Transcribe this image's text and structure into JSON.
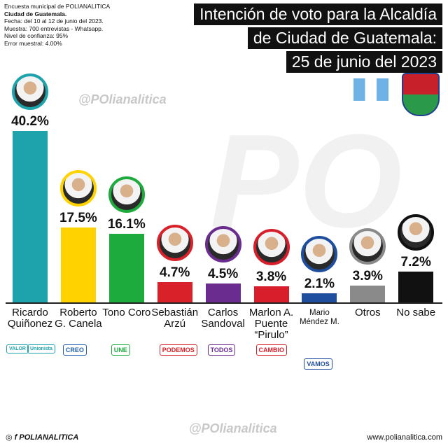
{
  "chart_data": {
    "type": "bar",
    "title_lines": [
      "Intención de voto para la Alcaldía",
      "de Ciudad de Guatemala:",
      "25 de junio del 2023"
    ],
    "info_lines": [
      "Encuesta municipal de POLIANALITICA",
      "Ciudad de Guatemala.",
      "Fecha: del 10 al 12 de junio del 2023.",
      "Muestra: 700 entrevistas - Whatsapp.",
      "Nivel de confianza: 95%",
      "Error muestral: 4.00%"
    ],
    "categories": [
      "Ricardo Quiñonez",
      "Roberto G. Canela",
      "Tono Coro",
      "Sebastián Arzú",
      "Carlos Sandoval",
      "Marlon A. Puente “Pirulo”",
      "Mario Méndez M.",
      "Otros",
      "No sabe"
    ],
    "values": [
      40.2,
      17.5,
      16.1,
      4.7,
      4.5,
      3.8,
      2.1,
      3.9,
      7.2
    ],
    "value_labels": [
      "40.2%",
      "17.5%",
      "16.1%",
      "4.7%",
      "4.5%",
      "3.8%",
      "2.1%",
      "3.9%",
      "7.2%"
    ],
    "colors": [
      "#1ea3ad",
      "#ffd200",
      "#1cab3c",
      "#d82128",
      "#6b2c8f",
      "#d81e2a",
      "#1f4e9f",
      "#8a8a8a",
      "#111111"
    ],
    "party_logos": [
      [
        "VALOR",
        "Unionista"
      ],
      [
        "CREO"
      ],
      [
        "UNE"
      ],
      [
        "PODEMOS"
      ],
      [
        "TODOS"
      ],
      [
        "CAMBIO"
      ],
      [
        "VAMOS"
      ],
      null,
      null
    ],
    "watermark": "@POlianalitica",
    "watermark_logo": "PO",
    "footer_left": "POLIANALITICA",
    "footer_right": "www.polianalitica.com"
  }
}
